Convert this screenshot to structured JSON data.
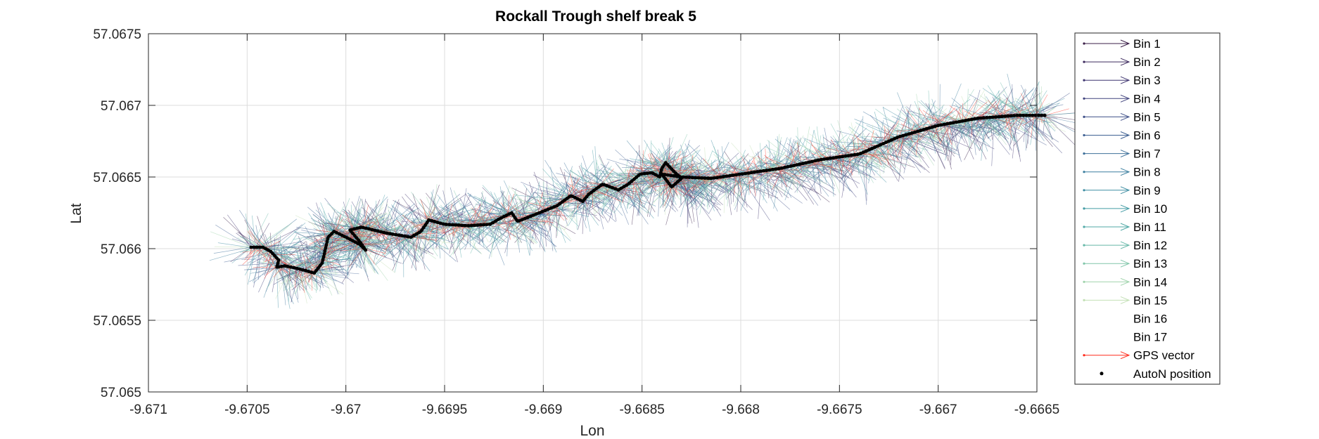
{
  "chart_data": {
    "type": "line",
    "title": "Rockall Trough shelf break 5",
    "xlabel": "Lon",
    "ylabel": "Lat",
    "xlim": [
      -9.671,
      -9.6665
    ],
    "ylim": [
      57.065,
      57.0675
    ],
    "xticks": [
      -9.671,
      -9.6705,
      -9.67,
      -9.6695,
      -9.669,
      -9.6685,
      -9.668,
      -9.6675,
      -9.667,
      -9.6665
    ],
    "xtick_labels": [
      "-9.671",
      "-9.6705",
      "-9.67",
      "-9.6695",
      "-9.669",
      "-9.6685",
      "-9.668",
      "-9.6675",
      "-9.667",
      "-9.6665"
    ],
    "yticks": [
      57.065,
      57.0655,
      57.066,
      57.0665,
      57.067,
      57.0675
    ],
    "ytick_labels": [
      "57.065",
      "57.0655",
      "57.066",
      "57.0665",
      "57.067",
      "57.0675"
    ],
    "grid": true,
    "legend_position": "outside-right",
    "legend": [
      {
        "name": "Bin 1",
        "color": "#3b1f48"
      },
      {
        "name": "Bin 2",
        "color": "#3d2a5e"
      },
      {
        "name": "Bin 3",
        "color": "#3f3570"
      },
      {
        "name": "Bin 4",
        "color": "#41447e"
      },
      {
        "name": "Bin 5",
        "color": "#41528a"
      },
      {
        "name": "Bin 6",
        "color": "#3f6193"
      },
      {
        "name": "Bin 7",
        "color": "#3d709a"
      },
      {
        "name": "Bin 8",
        "color": "#3c7f9f"
      },
      {
        "name": "Bin 9",
        "color": "#3e8da2"
      },
      {
        "name": "Bin 10",
        "color": "#449ca5"
      },
      {
        "name": "Bin 11",
        "color": "#52aaa7"
      },
      {
        "name": "Bin 12",
        "color": "#66b8a8"
      },
      {
        "name": "Bin 13",
        "color": "#80c6a9"
      },
      {
        "name": "Bin 14",
        "color": "#9fd3ab"
      },
      {
        "name": "Bin 15",
        "color": "#c3e0b5"
      },
      {
        "name": "Bin 16",
        "color": "#ffffff"
      },
      {
        "name": "Bin 17",
        "color": "#ffffff"
      },
      {
        "name": "GPS vector",
        "color": "#ff2a1a"
      },
      {
        "name": "AutoN position",
        "color": "#000000"
      }
    ],
    "track": {
      "name": "AutoN position",
      "points": [
        [
          -9.67048,
          57.06601
        ],
        [
          -9.67042,
          57.06601
        ],
        [
          -9.67038,
          57.06598
        ],
        [
          -9.67034,
          57.06592
        ],
        [
          -9.67035,
          57.06587
        ],
        [
          -9.67031,
          57.06588
        ],
        [
          -9.67024,
          57.06586
        ],
        [
          -9.67016,
          57.06583
        ],
        [
          -9.67012,
          57.0659
        ],
        [
          -9.67009,
          57.06608
        ],
        [
          -9.67006,
          57.06612
        ],
        [
          -9.67,
          57.06608
        ],
        [
          -9.66993,
          57.06603
        ],
        [
          -9.6699,
          57.06599
        ],
        [
          -9.66993,
          57.06605
        ],
        [
          -9.66998,
          57.06613
        ],
        [
          -9.66992,
          57.06615
        ],
        [
          -9.6698,
          57.06611
        ],
        [
          -9.66967,
          57.06608
        ],
        [
          -9.66962,
          57.06612
        ],
        [
          -9.66958,
          57.0662
        ],
        [
          -9.6695,
          57.06617
        ],
        [
          -9.66938,
          57.06616
        ],
        [
          -9.66927,
          57.06617
        ],
        [
          -9.66922,
          57.06621
        ],
        [
          -9.66916,
          57.06625
        ],
        [
          -9.66913,
          57.06619
        ],
        [
          -9.66902,
          57.06625
        ],
        [
          -9.66893,
          57.0663
        ],
        [
          -9.66886,
          57.06637
        ],
        [
          -9.6688,
          57.06633
        ],
        [
          -9.66877,
          57.06638
        ],
        [
          -9.6687,
          57.06645
        ],
        [
          -9.66862,
          57.06641
        ],
        [
          -9.66857,
          57.06645
        ],
        [
          -9.66851,
          57.06652
        ],
        [
          -9.66845,
          57.06653
        ],
        [
          -9.66841,
          57.0665
        ],
        [
          -9.6684,
          57.06656
        ],
        [
          -9.66838,
          57.0666
        ],
        [
          -9.66834,
          57.06654
        ],
        [
          -9.6683,
          57.06649
        ],
        [
          -9.66835,
          57.06643
        ],
        [
          -9.6684,
          57.06652
        ],
        [
          -9.6683,
          57.0665
        ],
        [
          -9.66815,
          57.06649
        ],
        [
          -9.668,
          57.06652
        ],
        [
          -9.6678,
          57.06656
        ],
        [
          -9.6676,
          57.06662
        ],
        [
          -9.6674,
          57.06666
        ],
        [
          -9.6672,
          57.06678
        ],
        [
          -9.667,
          57.06686
        ],
        [
          -9.6668,
          57.06691
        ],
        [
          -9.6666,
          57.06693
        ],
        [
          -9.66646,
          57.06693
        ]
      ]
    }
  }
}
